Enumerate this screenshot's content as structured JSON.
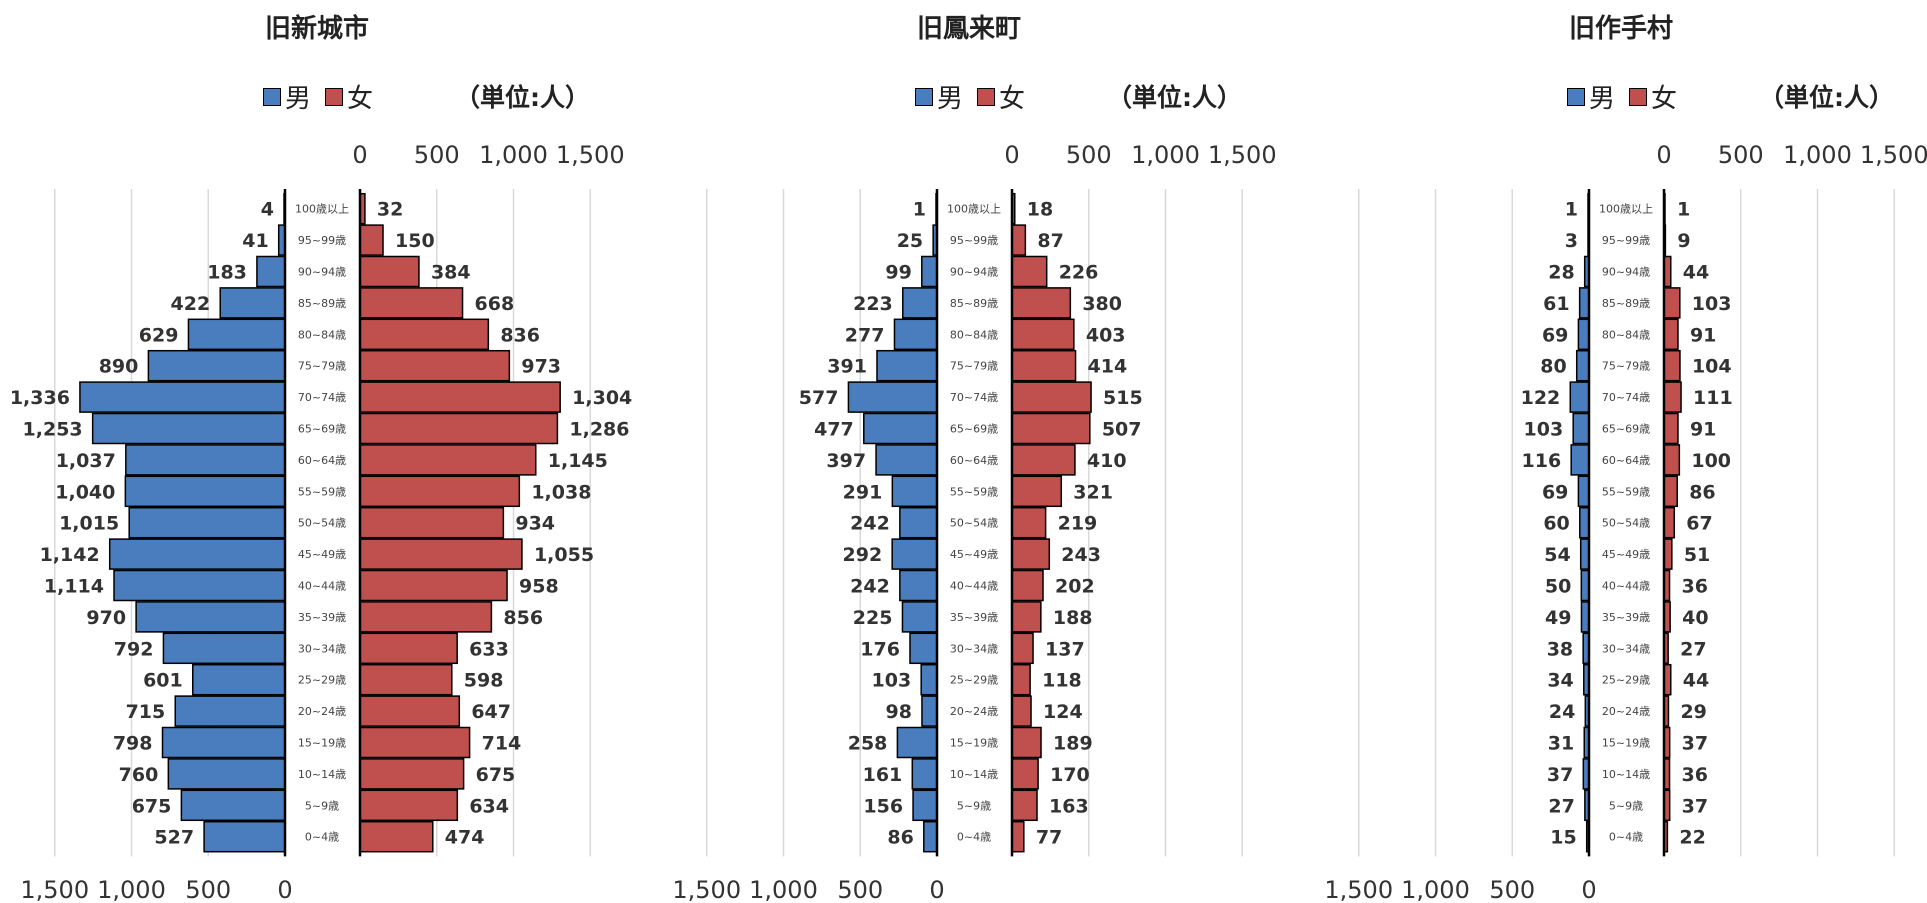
{
  "legend": {
    "male": "男",
    "female": "女"
  },
  "unit": "（単位:人）",
  "colors": {
    "male": "#4a7dbd",
    "female": "#c0504d",
    "grid": "#d9d9d9",
    "axis": "#000000"
  },
  "age_groups": [
    "100歳以上",
    "95~99歳",
    "90~94歳",
    "85~89歳",
    "80~84歳",
    "75~79歳",
    "70~74歳",
    "65~69歳",
    "60~64歳",
    "55~59歳",
    "50~54歳",
    "45~49歳",
    "40~44歳",
    "35~39歳",
    "30~34歳",
    "25~29歳",
    "20~24歳",
    "15~19歳",
    "10~14歳",
    "5~9歳",
    "0~4歳"
  ],
  "chart_data": [
    {
      "type": "bar",
      "title": "旧新城市",
      "categories": [
        "100歳以上",
        "95~99歳",
        "90~94歳",
        "85~89歳",
        "80~84歳",
        "75~79歳",
        "70~74歳",
        "65~69歳",
        "60~64歳",
        "55~59歳",
        "50~54歳",
        "45~49歳",
        "40~44歳",
        "35~39歳",
        "30~34歳",
        "25~29歳",
        "20~24歳",
        "15~19歳",
        "10~14歳",
        "5~9歳",
        "0~4歳"
      ],
      "series": [
        {
          "name": "男",
          "values": [
            4,
            41,
            183,
            422,
            629,
            890,
            1336,
            1253,
            1037,
            1040,
            1015,
            1142,
            1114,
            970,
            792,
            601,
            715,
            798,
            760,
            675,
            527
          ]
        },
        {
          "name": "女",
          "values": [
            32,
            150,
            384,
            668,
            836,
            973,
            1304,
            1286,
            1145,
            1038,
            934,
            1055,
            958,
            856,
            633,
            598,
            647,
            714,
            675,
            634,
            474
          ]
        }
      ],
      "male_labels": [
        "4",
        "41",
        "183",
        "422",
        "629",
        "890",
        "1,336",
        "1,253",
        "1,037",
        "1,040",
        "1,015",
        "1,142",
        "1,114",
        "970",
        "792",
        "601",
        "715",
        "798",
        "760",
        "675",
        "527"
      ],
      "female_labels": [
        "32",
        "150",
        "384",
        "668",
        "836",
        "973",
        "1,304",
        "1,286",
        "1,145",
        "1,038",
        "934",
        "1,055",
        "958",
        "856",
        "633",
        "598",
        "647",
        "714",
        "675",
        "634",
        "474"
      ],
      "xlim": [
        0,
        1500
      ],
      "ticks": [
        "0",
        "500",
        "1,000",
        "1,500"
      ],
      "grid": true
    },
    {
      "type": "bar",
      "title": "旧鳳来町",
      "categories": [
        "100歳以上",
        "95~99歳",
        "90~94歳",
        "85~89歳",
        "80~84歳",
        "75~79歳",
        "70~74歳",
        "65~69歳",
        "60~64歳",
        "55~59歳",
        "50~54歳",
        "45~49歳",
        "40~44歳",
        "35~39歳",
        "30~34歳",
        "25~29歳",
        "20~24歳",
        "15~19歳",
        "10~14歳",
        "5~9歳",
        "0~4歳"
      ],
      "series": [
        {
          "name": "男",
          "values": [
            1,
            25,
            99,
            223,
            277,
            391,
            577,
            477,
            397,
            291,
            242,
            292,
            242,
            225,
            176,
            103,
            98,
            258,
            161,
            156,
            86
          ]
        },
        {
          "name": "女",
          "values": [
            18,
            87,
            226,
            380,
            403,
            414,
            515,
            507,
            410,
            321,
            219,
            243,
            202,
            188,
            137,
            118,
            124,
            189,
            170,
            163,
            77
          ]
        }
      ],
      "male_labels": [
        "1",
        "25",
        "99",
        "223",
        "277",
        "391",
        "577",
        "477",
        "397",
        "291",
        "242",
        "292",
        "242",
        "225",
        "176",
        "103",
        "98",
        "258",
        "161",
        "156",
        "86"
      ],
      "female_labels": [
        "18",
        "87",
        "226",
        "380",
        "403",
        "414",
        "515",
        "507",
        "410",
        "321",
        "219",
        "243",
        "202",
        "188",
        "137",
        "118",
        "124",
        "189",
        "170",
        "163",
        "77"
      ],
      "xlim": [
        0,
        1500
      ],
      "ticks": [
        "0",
        "500",
        "1,000",
        "1,500"
      ],
      "grid": true
    },
    {
      "type": "bar",
      "title": "旧作手村",
      "categories": [
        "100歳以上",
        "95~99歳",
        "90~94歳",
        "85~89歳",
        "80~84歳",
        "75~79歳",
        "70~74歳",
        "65~69歳",
        "60~64歳",
        "55~59歳",
        "50~54歳",
        "45~49歳",
        "40~44歳",
        "35~39歳",
        "30~34歳",
        "25~29歳",
        "20~24歳",
        "15~19歳",
        "10~14歳",
        "5~9歳",
        "0~4歳"
      ],
      "series": [
        {
          "name": "男",
          "values": [
            1,
            3,
            28,
            61,
            69,
            80,
            122,
            103,
            116,
            69,
            60,
            54,
            50,
            49,
            38,
            34,
            24,
            31,
            37,
            27,
            15
          ]
        },
        {
          "name": "女",
          "values": [
            1,
            9,
            44,
            103,
            91,
            104,
            111,
            91,
            100,
            86,
            67,
            51,
            36,
            40,
            27,
            44,
            29,
            37,
            36,
            37,
            22
          ]
        }
      ],
      "male_labels": [
        "1",
        "3",
        "28",
        "61",
        "69",
        "80",
        "122",
        "103",
        "116",
        "69",
        "60",
        "54",
        "50",
        "49",
        "38",
        "34",
        "24",
        "31",
        "37",
        "27",
        "15"
      ],
      "female_labels": [
        "1",
        "9",
        "44",
        "103",
        "91",
        "104",
        "111",
        "91",
        "100",
        "86",
        "67",
        "51",
        "36",
        "40",
        "27",
        "44",
        "29",
        "37",
        "36",
        "37",
        "22"
      ],
      "xlim": [
        0,
        1500
      ],
      "ticks": [
        "0",
        "500",
        "1,000",
        "1,500"
      ],
      "grid": true
    }
  ]
}
